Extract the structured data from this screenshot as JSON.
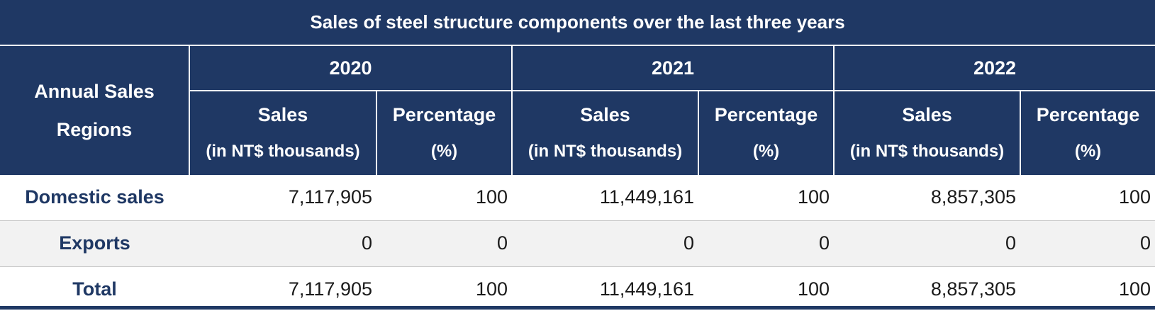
{
  "title": "Sales of steel structure components over the last three years",
  "header": {
    "region_line1": "Annual Sales",
    "region_line2": "Regions",
    "years": [
      {
        "year": "2020",
        "sales_line1": "Sales",
        "sales_line2": "(in NT$ thousands)",
        "pct_line1": "Percentage",
        "pct_line2": "(%)"
      },
      {
        "year": "2021",
        "sales_line1": "Sales",
        "sales_line2": "(in NT$ thousands)",
        "pct_line1": "Percentage",
        "pct_line2": "(%)"
      },
      {
        "year": "2022",
        "sales_line1": "Sales",
        "sales_line2": "(in NT$ thousands)",
        "pct_line1": "Percentage",
        "pct_line2": "(%)"
      }
    ]
  },
  "rows": [
    {
      "region": "Domestic sales",
      "values": [
        "7,117,905",
        "100",
        "11,449,161",
        "100",
        "8,857,305",
        "100"
      ]
    },
    {
      "region": "Exports",
      "values": [
        "0",
        "0",
        "0",
        "0",
        "0",
        "0"
      ]
    },
    {
      "region": "Total",
      "values": [
        "7,117,905",
        "100",
        "11,449,161",
        "100",
        "8,857,305",
        "100"
      ]
    }
  ],
  "colors": {
    "header_bg": "#1f3864",
    "header_text": "#ffffff",
    "label_text": "#1f3864",
    "stripe_bg": "#f2f2f2"
  }
}
